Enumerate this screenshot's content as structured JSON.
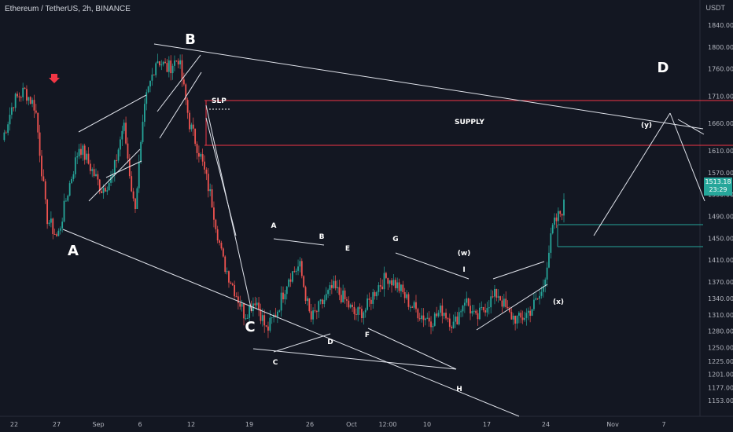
{
  "header": {
    "title": "Ethereum / TetherUS, 2h, BINANCE",
    "unit": "USDT"
  },
  "colors": {
    "bg": "#131722",
    "up": "#26a69a",
    "down": "#ef5350",
    "line": "#e0e3eb",
    "supply": "#f23645",
    "box": "#26a69a",
    "marker": "#f23645"
  },
  "chart_data": {
    "type": "line",
    "title": "Ethereum / TetherUS, 2h, BINANCE",
    "ylabel": "USDT",
    "ylim": [
      1140,
      1870
    ],
    "y_ticks": [
      "1840.00",
      "1800.00",
      "1760.00",
      "1710.00",
      "1660.00",
      "1610.00",
      "1570.00",
      "1530.00",
      "1490.00",
      "1450.00",
      "1410.00",
      "1370.00",
      "1340.00",
      "1310.00",
      "1280.00",
      "1250.00",
      "1225.00",
      "1201.00",
      "1177.00",
      "1153.00"
    ],
    "x_ticks": [
      "22",
      "27",
      "Sep",
      "6",
      "12",
      "19",
      "26",
      "Oct",
      "12:00",
      "10",
      "17",
      "24",
      "Nov",
      "7"
    ],
    "last_price": "1513.18",
    "countdown": "23:29",
    "series": [
      {
        "values": [
          1630,
          1700,
          1720,
          1690,
          1490,
          1450,
          1540,
          1620,
          1580,
          1540,
          1560,
          1660,
          1500,
          1700,
          1780,
          1760,
          1780,
          1660,
          1600,
          1520,
          1410,
          1360,
          1310,
          1340,
          1280,
          1320,
          1380,
          1400,
          1300,
          1330,
          1360,
          1340,
          1310,
          1320,
          1360,
          1380,
          1360,
          1330,
          1310,
          1300,
          1320,
          1290,
          1340,
          1300,
          1330,
          1350,
          1310,
          1300,
          1320,
          1350,
          1470,
          1510
        ]
      }
    ],
    "wave_labels": [
      "A",
      "B",
      "C",
      "D",
      "A",
      "B",
      "C",
      "D",
      "E",
      "F",
      "G",
      "H",
      "I",
      "(w)",
      "(x)",
      "(y)"
    ],
    "zones": {
      "slp": "SLP",
      "supply": "SUPPLY"
    }
  }
}
